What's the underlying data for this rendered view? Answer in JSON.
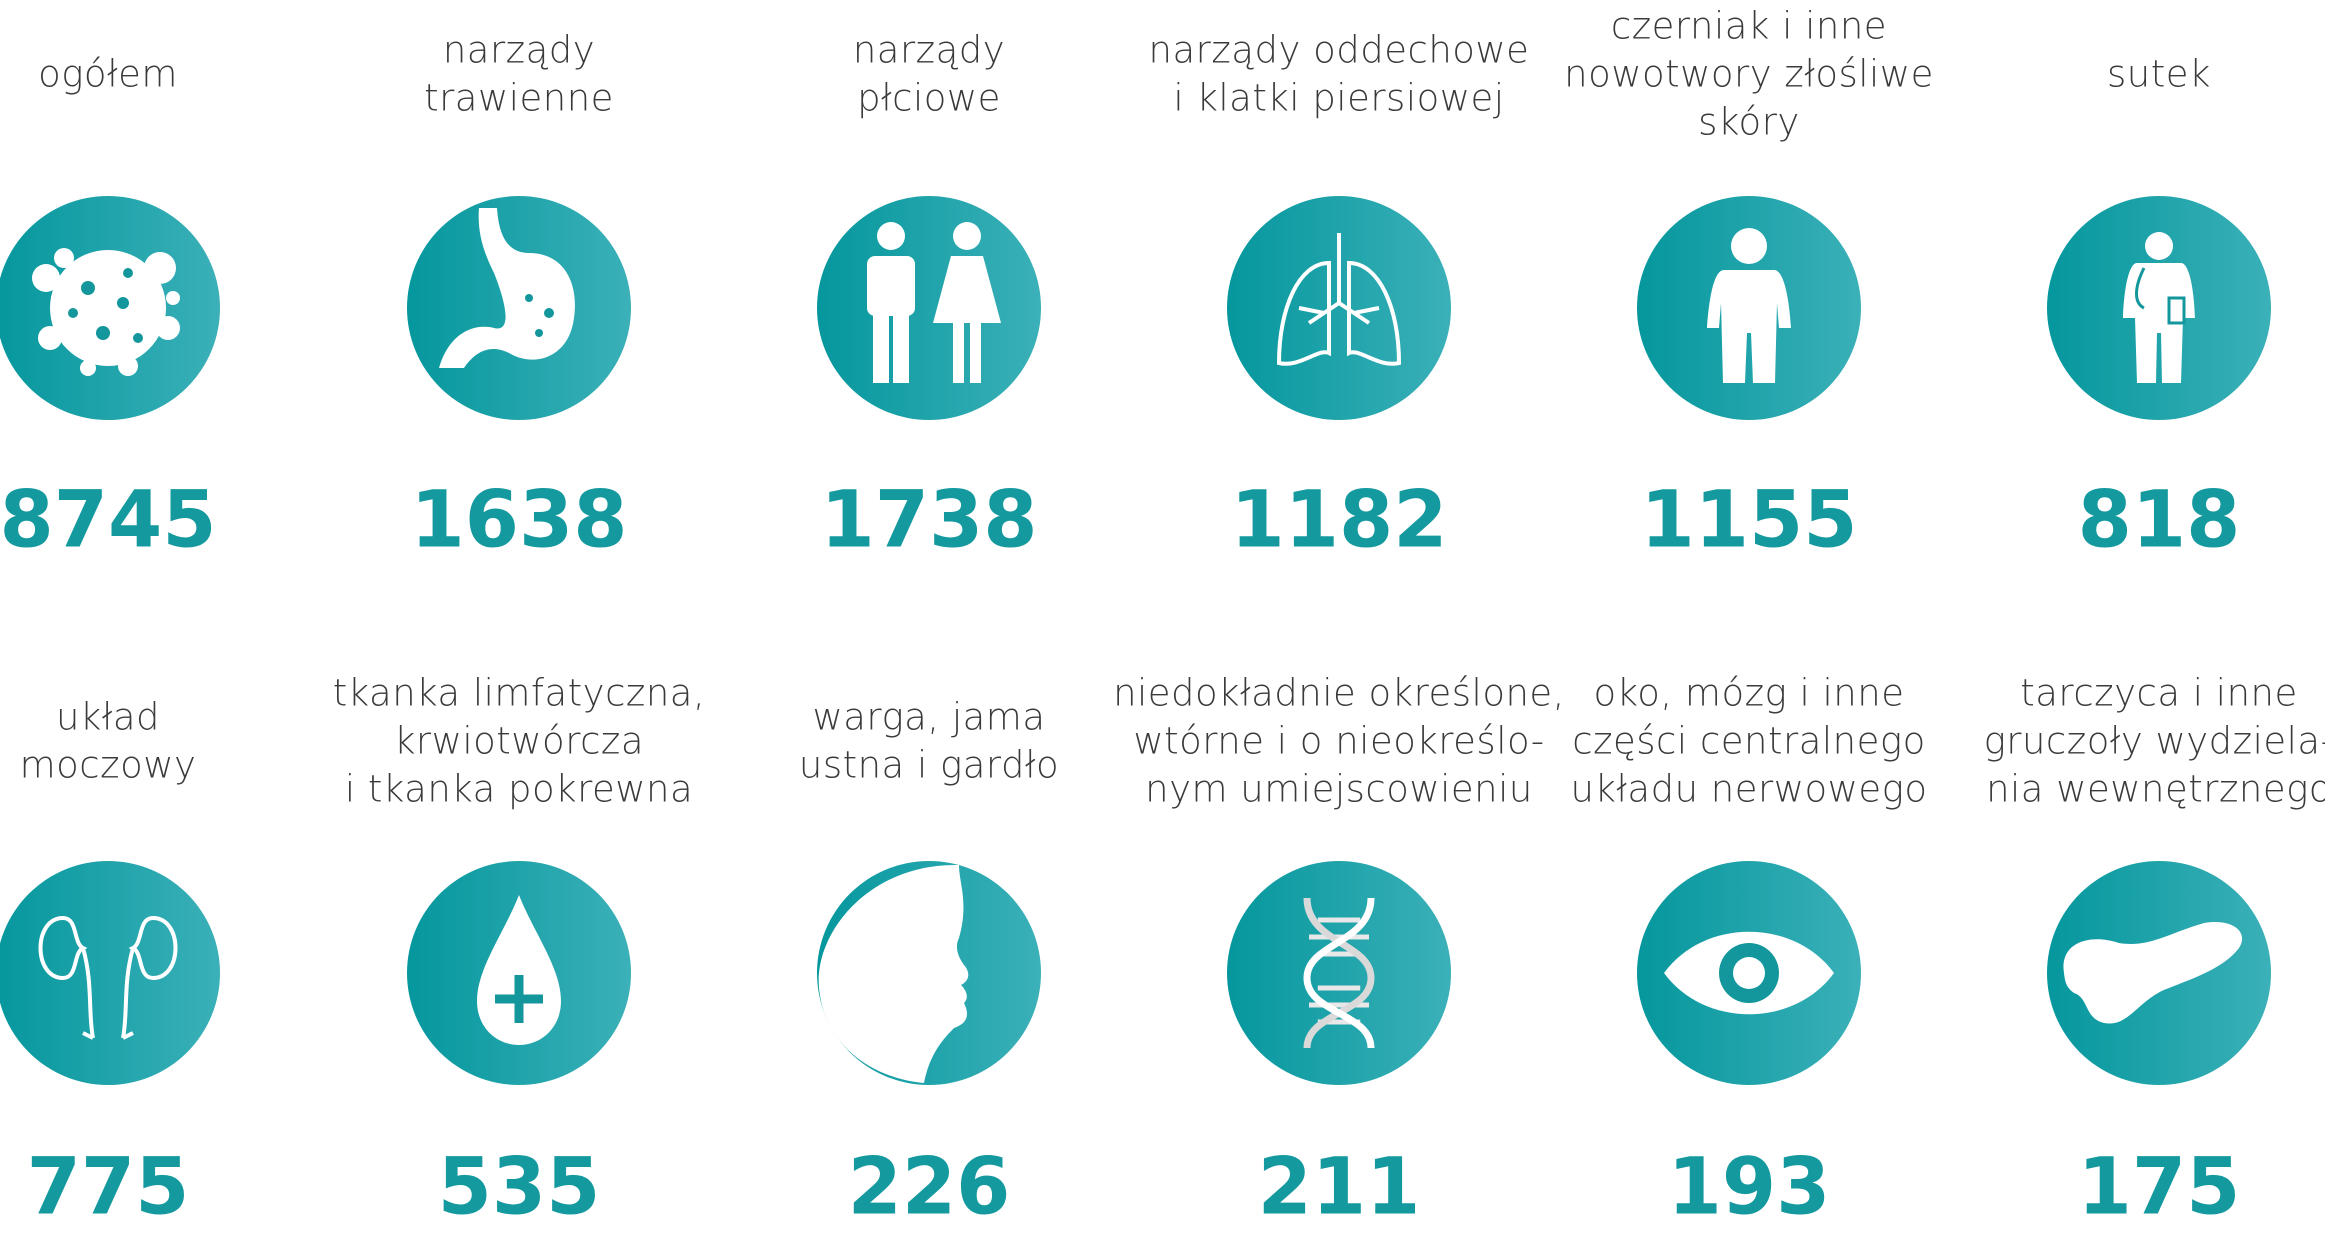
{
  "items": [
    {
      "label": [
        "ogółem"
      ],
      "value": 8745
    },
    {
      "label": [
        "narządy",
        "trawienne"
      ],
      "value": 1638
    },
    {
      "label": [
        "narządy",
        "płciowe"
      ],
      "value": 1738
    },
    {
      "label": [
        "narządy oddechowe",
        "i klatki piersiowej"
      ],
      "value": 1182
    },
    {
      "label": [
        "czerniak i inne",
        "nowotwory złośliwe",
        "skóry"
      ],
      "value": 1155
    },
    {
      "label": [
        "sutek"
      ],
      "value": 818
    },
    {
      "label": [
        "układ",
        "moczowy"
      ],
      "value": 775
    },
    {
      "label": [
        "tkanka limfatyczna,",
        "krwiotwórcza",
        "i tkanka pokrewna"
      ],
      "value": 535
    },
    {
      "label": [
        "warga, jama",
        "ustna i gardło"
      ],
      "value": 226
    },
    {
      "label": [
        "niedokładnie określone,",
        "wtórne i o nieokreślo-",
        "nym umiejscowieniu"
      ],
      "value": 211
    },
    {
      "label": [
        "oko, mózg i inne",
        "części centralnego",
        "układu nerwowego"
      ],
      "value": 193
    },
    {
      "label": [
        "tarczyca i inne",
        "gruczoły wydziela-",
        "nia wewnętrznego"
      ],
      "value": 175
    }
  ]
}
